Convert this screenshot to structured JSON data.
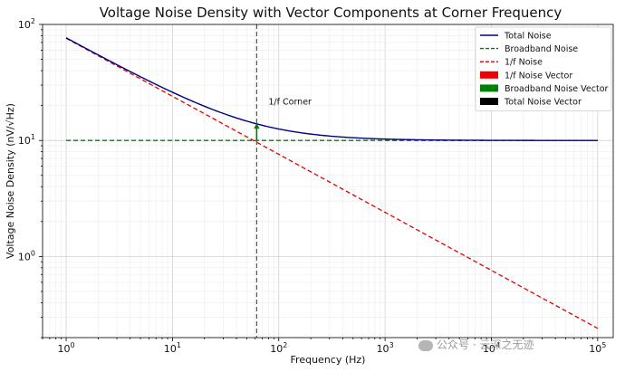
{
  "chart_data": {
    "type": "line",
    "title": "Voltage Noise Density with Vector Components at Corner Frequency",
    "xlabel": "Frequency (Hz)",
    "ylabel": "Voltage Noise Density (nV/√Hz)",
    "xscale": "log",
    "yscale": "log",
    "xlim": [
      0.6,
      140000
    ],
    "ylim": [
      0.2,
      100
    ],
    "x_ticks": [
      {
        "value": 1,
        "base": "10",
        "exp": "0"
      },
      {
        "value": 10,
        "base": "10",
        "exp": "1"
      },
      {
        "value": 100,
        "base": "10",
        "exp": "2"
      },
      {
        "value": 1000,
        "base": "10",
        "exp": "3"
      },
      {
        "value": 10000,
        "base": "10",
        "exp": "4"
      },
      {
        "value": 100000,
        "base": "10",
        "exp": "5"
      }
    ],
    "y_ticks": [
      {
        "value": 1,
        "base": "10",
        "exp": "0"
      },
      {
        "value": 10,
        "base": "10",
        "exp": "1"
      },
      {
        "value": 100,
        "base": "10",
        "exp": "2"
      }
    ],
    "grid": true,
    "legend_position": "top-right",
    "series": [
      {
        "name": "Total Noise",
        "style": "solid",
        "color": "#000080",
        "model": "sqrt(broadband^2 + (A/sqrt(f))^2)",
        "x_range": [
          1,
          100000
        ]
      },
      {
        "name": "Broadband Noise",
        "style": "dashed",
        "color": "#008000",
        "value": 10,
        "x_range": [
          1,
          100000
        ]
      },
      {
        "name": "1/f Noise",
        "style": "dashed",
        "color": "#e00000",
        "value_at_1Hz": 76,
        "slope": -0.5,
        "x_range": [
          1,
          100000
        ]
      },
      {
        "name": "1/f Noise Vector",
        "style": "patch",
        "color": "#ee0000"
      },
      {
        "name": "Broadband Noise Vector",
        "style": "patch",
        "color": "#008000",
        "x": 62,
        "y_from": 10,
        "y_to": 14.1
      },
      {
        "name": "Total Noise Vector",
        "style": "patch",
        "color": "#000000"
      }
    ],
    "corner_frequency": 62,
    "annotations": [
      {
        "text": "1/f Corner",
        "x": 62,
        "y": 20
      }
    ]
  },
  "watermark": {
    "text": "公众号 · 云深之无迹"
  }
}
